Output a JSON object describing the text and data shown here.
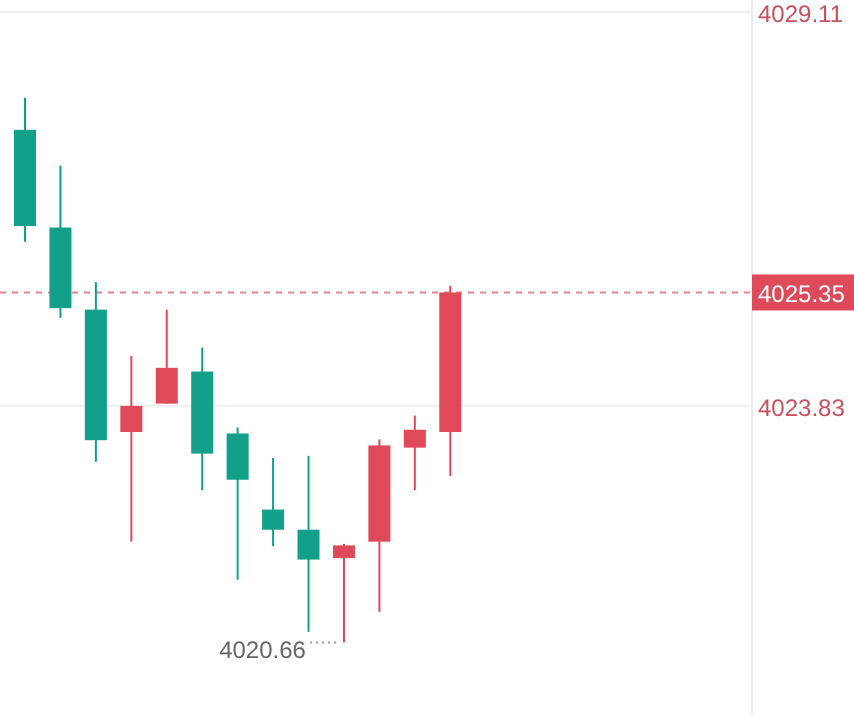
{
  "chart_data": {
    "type": "candlestick",
    "categories": [
      null,
      null,
      null,
      null,
      null,
      null,
      null,
      null,
      null,
      null,
      null,
      null,
      null,
      null,
      null,
      null,
      null,
      null,
      null,
      null,
      null
    ],
    "ohlc": [
      [
        4027.53,
        4027.96,
        4026.03,
        4026.24
      ],
      [
        4026.22,
        4027.05,
        4025.01,
        4025.14
      ],
      [
        4025.12,
        4025.49,
        4023.08,
        4023.37
      ],
      [
        4023.48,
        4024.5,
        4022.01,
        4023.83
      ],
      [
        4023.86,
        4025.12,
        4023.86,
        4024.34
      ],
      [
        4024.29,
        4024.61,
        4022.7,
        4023.19
      ],
      [
        4023.46,
        4023.54,
        4021.5,
        4022.84
      ],
      [
        4022.44,
        4023.13,
        4021.95,
        4022.17
      ],
      [
        4022.17,
        4023.16,
        4020.8,
        4021.77
      ],
      [
        4021.79,
        4021.98,
        4020.66,
        4021.96
      ],
      [
        4022.01,
        4023.38,
        4021.07,
        4023.3
      ],
      [
        4023.27,
        4023.7,
        4022.7,
        4023.51
      ],
      [
        4023.48,
        4025.44,
        4022.89,
        4025.35
      ],
      null,
      null,
      null,
      null,
      null,
      null,
      null,
      null
    ],
    "colors": [
      "#12a08a",
      "#12a08a",
      "#12a08a",
      "#df4a5a",
      "#df4a5a",
      "#12a08a",
      "#12a08a",
      "#12a08a",
      "#12a08a",
      "#df4a5a",
      "#df4a5a",
      "#df4a5a",
      "#df4a5a",
      null,
      null,
      null,
      null,
      null,
      null,
      null,
      null
    ],
    "ylim": [
      4019.7,
      4029.27
    ],
    "yticks": [
      4029.11,
      4023.83
    ],
    "grid": "y",
    "tick_labels": "y",
    "ref_lines": [
      {
        "axis": "y",
        "value": 4025.35,
        "label": "4025.35",
        "color": "#df4a5a",
        "line_style": "dashed"
      }
    ],
    "annotations": [
      "4020.66"
    ]
  }
}
